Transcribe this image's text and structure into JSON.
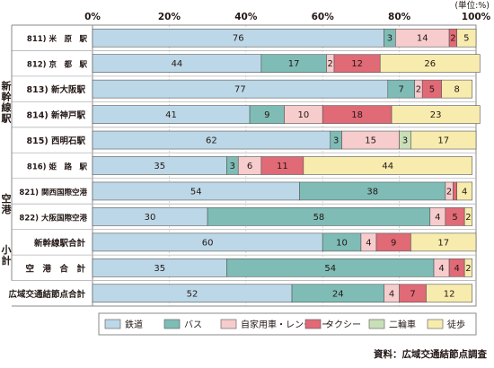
{
  "chart_data": {
    "type": "bar",
    "orientation": "horizontal",
    "stacked": true,
    "unit": "(単位:%)",
    "source": "資料：広域交通結節点調査",
    "xlim": [
      0,
      100
    ],
    "xticks": [
      "0%",
      "20%",
      "40%",
      "60%",
      "80%",
      "100%"
    ],
    "grid": true,
    "legend_position": "bottom",
    "groups": [
      {
        "label": "新幹線駅",
        "rows": [
          0,
          5
        ]
      },
      {
        "label": "空港",
        "rows": [
          6,
          7
        ]
      },
      {
        "label": "小計",
        "rows": [
          8,
          9
        ]
      }
    ],
    "categories": [
      "811) 米　原　駅",
      "812) 京　都　駅",
      "813) 新大阪駅",
      "814) 新神戸駅",
      "815) 西明石駅",
      "816) 姫　路　駅",
      "821) 関西国際空港",
      "822) 大阪国際空港",
      "新幹線駅合計",
      "空　港　合　計",
      "広域交通結節点合計"
    ],
    "series": [
      {
        "name": "鉄道",
        "color": "#bcd8e8",
        "values": [
          76,
          44,
          77,
          41,
          62,
          35,
          54,
          30,
          60,
          35,
          52
        ]
      },
      {
        "name": "バス",
        "color": "#7fbcb6",
        "values": [
          3,
          17,
          7,
          9,
          3,
          3,
          38,
          58,
          10,
          54,
          24
        ]
      },
      {
        "name": "自家用車・レンタカー",
        "color": "#f6cccd",
        "values": [
          14,
          2,
          2,
          10,
          15,
          6,
          2,
          4,
          4,
          4,
          4
        ]
      },
      {
        "name": "タクシー",
        "color": "#e06a76",
        "values": [
          2,
          12,
          5,
          18,
          0,
          11,
          1,
          5,
          9,
          4,
          7
        ]
      },
      {
        "name": "二輪車",
        "color": "#c9dfb8",
        "values": [
          0,
          0,
          0,
          0,
          3,
          0,
          0,
          0,
          0,
          0,
          0
        ]
      },
      {
        "name": "徒歩",
        "color": "#f7ecae",
        "values": [
          5,
          26,
          8,
          23,
          17,
          44,
          4,
          2,
          17,
          2,
          12
        ]
      }
    ],
    "data_labels": [
      [
        "76",
        "3",
        "14",
        "2",
        "",
        "5"
      ],
      [
        "44",
        "17",
        "2",
        "12",
        "",
        "26"
      ],
      [
        "77",
        "7",
        "2",
        "5",
        "",
        "8"
      ],
      [
        "41",
        "9",
        "10",
        "18",
        "",
        "23"
      ],
      [
        "62",
        "3",
        "15",
        "",
        "3",
        "17"
      ],
      [
        "35",
        "3",
        "6",
        "11",
        "",
        "44"
      ],
      [
        "54",
        "38",
        "2",
        "1",
        "",
        "4"
      ],
      [
        "30",
        "58",
        "4",
        "5",
        "",
        "2"
      ],
      [
        "60",
        "10",
        "4",
        "9",
        "",
        "17"
      ],
      [
        "35",
        "54",
        "4",
        "4",
        "",
        "2"
      ],
      [
        "52",
        "24",
        "4",
        "7",
        "",
        "12"
      ]
    ]
  }
}
